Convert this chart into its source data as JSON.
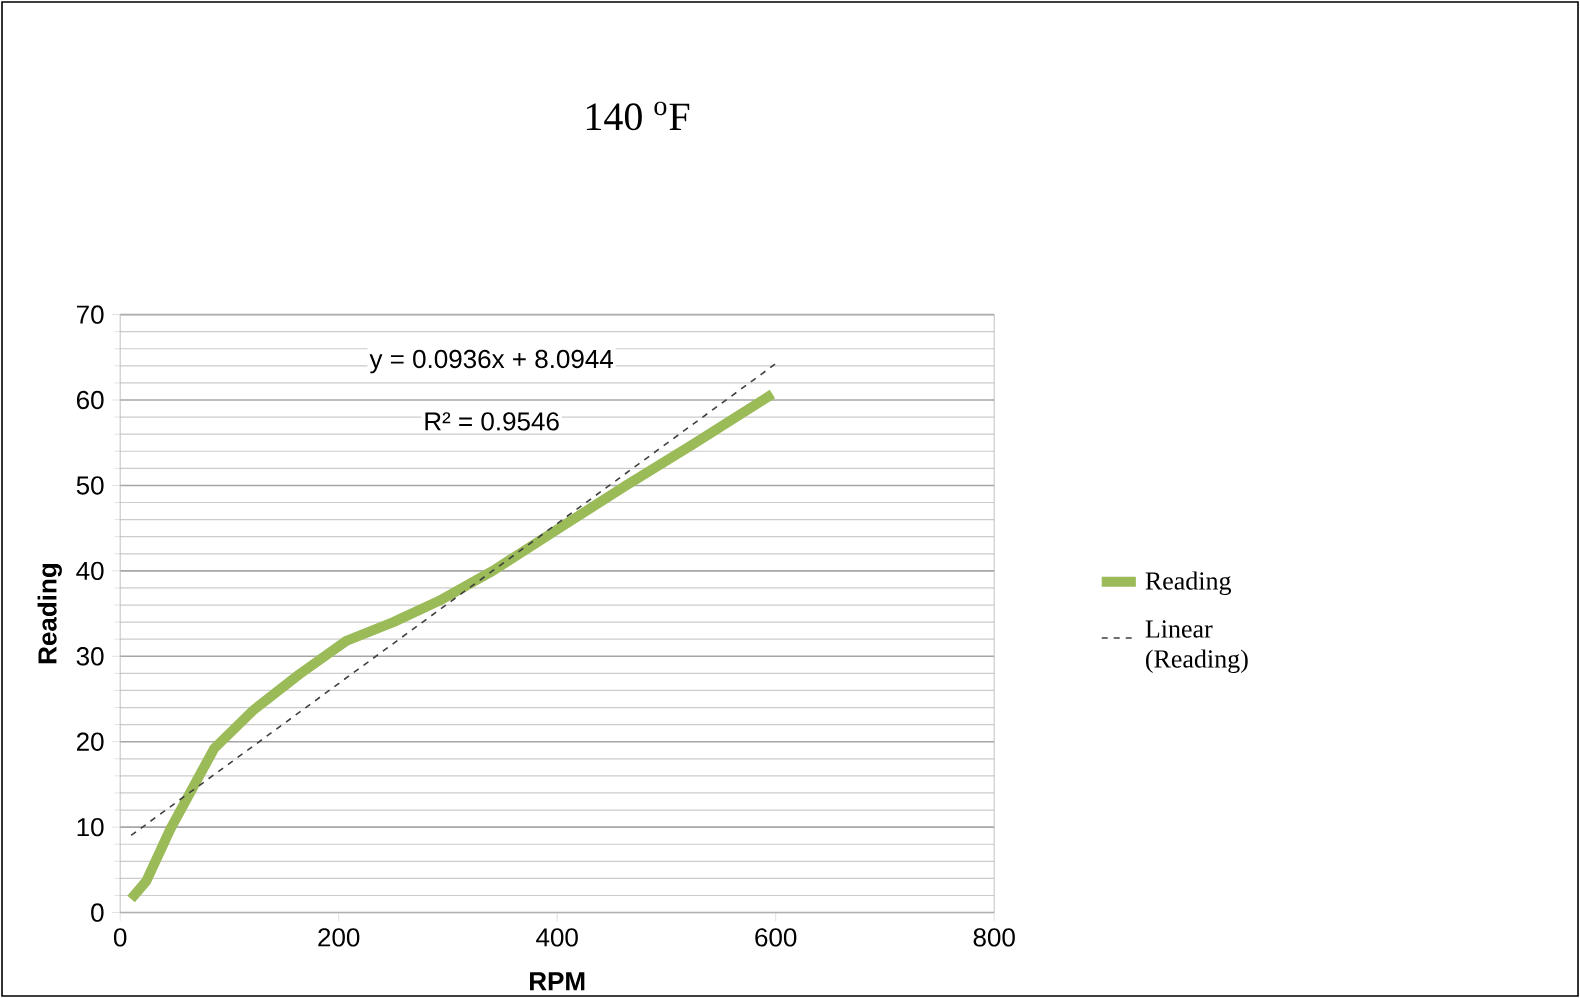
{
  "chart_data": {
    "type": "line",
    "title": "140 $^{o}$F",
    "xlabel": "RPM",
    "ylabel": "Reading",
    "series": [
      {
        "name": "Reading",
        "color": "#9bbb59",
        "x": [
          10,
          24,
          46,
          86,
          122,
          164,
          207,
          250,
          292,
          341,
          402,
          463,
          524,
          597
        ],
        "values": [
          1.6,
          3.7,
          9.8,
          19.2,
          23.7,
          27.9,
          31.8,
          34,
          36.5,
          40,
          45,
          50,
          54.8,
          60.7
        ]
      },
      {
        "name": "Linear (Reading)",
        "type": "line",
        "color": "#404040",
        "line_style": "dashed",
        "x": [
          10,
          600
        ],
        "values": [
          9.03,
          64.25
        ]
      }
    ],
    "annotations": [
      "y = 0.0936x + 8.0944",
      "R² = 0.9546"
    ],
    "xlim": [
      0,
      800
    ],
    "xticks": [
      0,
      200,
      400,
      600,
      800
    ],
    "ylim": [
      0,
      70
    ],
    "yticks": [
      0,
      10,
      20,
      30,
      40,
      50,
      60,
      70
    ],
    "grid": "y",
    "legend": "right",
    "marker": "none"
  }
}
